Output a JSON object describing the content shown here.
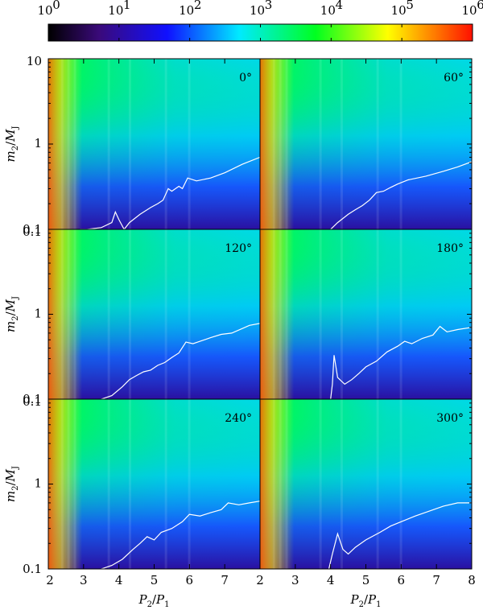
{
  "chart_data": {
    "type": "heatmap",
    "colorbar": {
      "scale": "log",
      "range": [
        1,
        1000000
      ],
      "ticks": [
        {
          "base": "10",
          "exp": "0"
        },
        {
          "base": "10",
          "exp": "1"
        },
        {
          "base": "10",
          "exp": "2"
        },
        {
          "base": "10",
          "exp": "3"
        },
        {
          "base": "10",
          "exp": "4"
        },
        {
          "base": "10",
          "exp": "5"
        },
        {
          "base": "10",
          "exp": "6"
        }
      ],
      "colormap": [
        "#000000",
        "#4b0082",
        "#0000ff",
        "#00ffff",
        "#00ff00",
        "#ffff00",
        "#ff0000"
      ]
    },
    "x_axis": {
      "label": {
        "main": "P",
        "sub1": "2",
        "slash": "/",
        "main2": "P",
        "sub2": "1"
      },
      "range": [
        2,
        8
      ],
      "ticks": [
        2,
        3,
        4,
        5,
        6,
        7,
        8
      ]
    },
    "y_axis": {
      "label": {
        "main": "m",
        "sub1": "2",
        "slash": "/",
        "main2": "M",
        "sub2": "J"
      },
      "scale": "log",
      "range": [
        0.1,
        10
      ],
      "ticks_top_row": [
        "10",
        "1",
        "0.1"
      ],
      "ticks_lower_rows": [
        "0.1",
        "1",
        "0.1"
      ]
    },
    "panels": [
      {
        "angle": "0°",
        "contour": [
          [
            2.9,
            0.1
          ],
          [
            3.0,
            0.1
          ],
          [
            3.1,
            0.1
          ],
          [
            3.5,
            0.105
          ],
          [
            3.8,
            0.12
          ],
          [
            3.9,
            0.16
          ],
          [
            4.0,
            0.13
          ],
          [
            4.15,
            0.1
          ],
          [
            4.3,
            0.12
          ],
          [
            4.6,
            0.15
          ],
          [
            4.9,
            0.18
          ],
          [
            5.1,
            0.2
          ],
          [
            5.25,
            0.22
          ],
          [
            5.4,
            0.3
          ],
          [
            5.5,
            0.28
          ],
          [
            5.7,
            0.32
          ],
          [
            5.8,
            0.3
          ],
          [
            5.95,
            0.4
          ],
          [
            6.2,
            0.37
          ],
          [
            6.6,
            0.4
          ],
          [
            7.0,
            0.46
          ],
          [
            7.5,
            0.58
          ],
          [
            8.0,
            0.7
          ]
        ]
      },
      {
        "angle": "60°",
        "contour": [
          [
            4.0,
            0.1
          ],
          [
            4.2,
            0.12
          ],
          [
            4.5,
            0.15
          ],
          [
            4.7,
            0.17
          ],
          [
            4.9,
            0.19
          ],
          [
            5.1,
            0.22
          ],
          [
            5.3,
            0.27
          ],
          [
            5.5,
            0.28
          ],
          [
            5.7,
            0.31
          ],
          [
            5.9,
            0.34
          ],
          [
            6.2,
            0.38
          ],
          [
            6.7,
            0.42
          ],
          [
            7.2,
            0.48
          ],
          [
            7.6,
            0.54
          ],
          [
            8.0,
            0.62
          ]
        ]
      },
      {
        "angle": "120°",
        "contour": [
          [
            3.5,
            0.1
          ],
          [
            3.8,
            0.11
          ],
          [
            4.1,
            0.14
          ],
          [
            4.3,
            0.17
          ],
          [
            4.5,
            0.19
          ],
          [
            4.7,
            0.21
          ],
          [
            4.9,
            0.22
          ],
          [
            5.1,
            0.25
          ],
          [
            5.3,
            0.27
          ],
          [
            5.5,
            0.31
          ],
          [
            5.7,
            0.35
          ],
          [
            5.9,
            0.47
          ],
          [
            6.1,
            0.45
          ],
          [
            6.3,
            0.48
          ],
          [
            6.6,
            0.53
          ],
          [
            6.9,
            0.58
          ],
          [
            7.2,
            0.6
          ],
          [
            7.5,
            0.68
          ],
          [
            7.7,
            0.74
          ],
          [
            8.0,
            0.78
          ]
        ]
      },
      {
        "angle": "180°",
        "contour": [
          [
            4.0,
            0.1
          ],
          [
            4.05,
            0.15
          ],
          [
            4.1,
            0.33
          ],
          [
            4.2,
            0.18
          ],
          [
            4.4,
            0.15
          ],
          [
            4.6,
            0.17
          ],
          [
            4.8,
            0.2
          ],
          [
            5.0,
            0.24
          ],
          [
            5.3,
            0.28
          ],
          [
            5.6,
            0.36
          ],
          [
            5.9,
            0.42
          ],
          [
            6.1,
            0.48
          ],
          [
            6.3,
            0.45
          ],
          [
            6.6,
            0.52
          ],
          [
            6.9,
            0.57
          ],
          [
            7.1,
            0.72
          ],
          [
            7.3,
            0.62
          ],
          [
            7.6,
            0.66
          ],
          [
            8.0,
            0.7
          ]
        ]
      },
      {
        "angle": "240°",
        "contour": [
          [
            3.5,
            0.1
          ],
          [
            3.8,
            0.11
          ],
          [
            4.1,
            0.13
          ],
          [
            4.4,
            0.17
          ],
          [
            4.6,
            0.2
          ],
          [
            4.8,
            0.24
          ],
          [
            5.0,
            0.22
          ],
          [
            5.2,
            0.27
          ],
          [
            5.5,
            0.3
          ],
          [
            5.8,
            0.36
          ],
          [
            6.0,
            0.44
          ],
          [
            6.3,
            0.42
          ],
          [
            6.6,
            0.46
          ],
          [
            6.9,
            0.5
          ],
          [
            7.1,
            0.6
          ],
          [
            7.4,
            0.57
          ],
          [
            7.7,
            0.6
          ],
          [
            8.0,
            0.63
          ]
        ]
      },
      {
        "angle": "300°",
        "contour": [
          [
            3.95,
            0.1
          ],
          [
            4.05,
            0.15
          ],
          [
            4.2,
            0.26
          ],
          [
            4.35,
            0.17
          ],
          [
            4.5,
            0.15
          ],
          [
            4.7,
            0.18
          ],
          [
            5.0,
            0.22
          ],
          [
            5.4,
            0.27
          ],
          [
            5.7,
            0.32
          ],
          [
            6.0,
            0.36
          ],
          [
            6.4,
            0.42
          ],
          [
            6.8,
            0.48
          ],
          [
            7.2,
            0.55
          ],
          [
            7.6,
            0.6
          ],
          [
            8.0,
            0.6
          ]
        ]
      }
    ]
  }
}
